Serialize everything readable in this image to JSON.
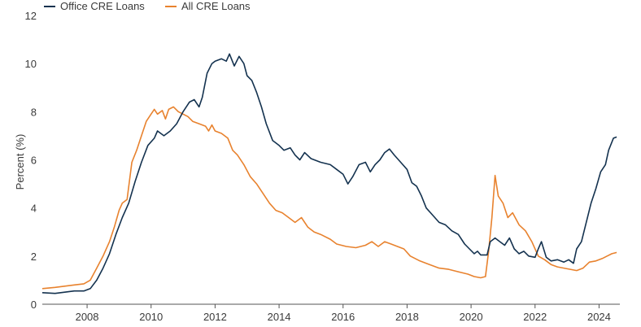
{
  "chart_data": {
    "type": "line",
    "title": "",
    "xlabel": "",
    "ylabel": "Percent (%)",
    "xlim": [
      2006.6,
      2024.65
    ],
    "ylim": [
      0,
      12
    ],
    "yticks": [
      0,
      2,
      4,
      6,
      8,
      10,
      12
    ],
    "xticks": [
      2008,
      2010,
      2012,
      2014,
      2016,
      2018,
      2020,
      2022,
      2024
    ],
    "grid": false,
    "legend": {
      "position": "top-left"
    },
    "series": [
      {
        "name": "Office CRE Loans",
        "color": "#14324f",
        "points": [
          [
            2006.6,
            0.48
          ],
          [
            2007.0,
            0.45
          ],
          [
            2007.3,
            0.5
          ],
          [
            2007.6,
            0.55
          ],
          [
            2007.9,
            0.55
          ],
          [
            2008.1,
            0.65
          ],
          [
            2008.3,
            1.0
          ],
          [
            2008.5,
            1.5
          ],
          [
            2008.7,
            2.1
          ],
          [
            2008.9,
            2.9
          ],
          [
            2009.1,
            3.6
          ],
          [
            2009.3,
            4.2
          ],
          [
            2009.5,
            5.1
          ],
          [
            2009.7,
            5.9
          ],
          [
            2009.9,
            6.6
          ],
          [
            2010.1,
            6.9
          ],
          [
            2010.2,
            7.2
          ],
          [
            2010.4,
            7.0
          ],
          [
            2010.6,
            7.2
          ],
          [
            2010.8,
            7.5
          ],
          [
            2011.0,
            8.0
          ],
          [
            2011.2,
            8.4
          ],
          [
            2011.35,
            8.5
          ],
          [
            2011.5,
            8.2
          ],
          [
            2011.6,
            8.6
          ],
          [
            2011.75,
            9.6
          ],
          [
            2011.9,
            10.0
          ],
          [
            2012.0,
            10.1
          ],
          [
            2012.2,
            10.2
          ],
          [
            2012.35,
            10.1
          ],
          [
            2012.45,
            10.4
          ],
          [
            2012.6,
            9.9
          ],
          [
            2012.75,
            10.3
          ],
          [
            2012.9,
            10.0
          ],
          [
            2013.0,
            9.5
          ],
          [
            2013.15,
            9.3
          ],
          [
            2013.3,
            8.8
          ],
          [
            2013.45,
            8.2
          ],
          [
            2013.6,
            7.5
          ],
          [
            2013.8,
            6.8
          ],
          [
            2014.0,
            6.6
          ],
          [
            2014.15,
            6.4
          ],
          [
            2014.35,
            6.5
          ],
          [
            2014.5,
            6.2
          ],
          [
            2014.65,
            6.0
          ],
          [
            2014.8,
            6.3
          ],
          [
            2015.0,
            6.05
          ],
          [
            2015.3,
            5.9
          ],
          [
            2015.6,
            5.8
          ],
          [
            2015.8,
            5.6
          ],
          [
            2016.0,
            5.4
          ],
          [
            2016.15,
            5.0
          ],
          [
            2016.3,
            5.3
          ],
          [
            2016.5,
            5.8
          ],
          [
            2016.7,
            5.9
          ],
          [
            2016.85,
            5.5
          ],
          [
            2017.0,
            5.8
          ],
          [
            2017.15,
            6.0
          ],
          [
            2017.3,
            6.3
          ],
          [
            2017.45,
            6.45
          ],
          [
            2017.6,
            6.2
          ],
          [
            2017.8,
            5.9
          ],
          [
            2018.0,
            5.6
          ],
          [
            2018.15,
            5.05
          ],
          [
            2018.3,
            4.9
          ],
          [
            2018.45,
            4.5
          ],
          [
            2018.6,
            4.0
          ],
          [
            2018.8,
            3.7
          ],
          [
            2019.0,
            3.4
          ],
          [
            2019.2,
            3.3
          ],
          [
            2019.4,
            3.05
          ],
          [
            2019.6,
            2.9
          ],
          [
            2019.8,
            2.5
          ],
          [
            2019.95,
            2.3
          ],
          [
            2020.1,
            2.1
          ],
          [
            2020.2,
            2.2
          ],
          [
            2020.3,
            2.05
          ],
          [
            2020.5,
            2.05
          ],
          [
            2020.6,
            2.6
          ],
          [
            2020.75,
            2.75
          ],
          [
            2020.9,
            2.6
          ],
          [
            2021.05,
            2.45
          ],
          [
            2021.2,
            2.75
          ],
          [
            2021.35,
            2.3
          ],
          [
            2021.5,
            2.1
          ],
          [
            2021.65,
            2.2
          ],
          [
            2021.8,
            2.0
          ],
          [
            2022.0,
            1.95
          ],
          [
            2022.1,
            2.3
          ],
          [
            2022.2,
            2.6
          ],
          [
            2022.35,
            1.95
          ],
          [
            2022.5,
            1.8
          ],
          [
            2022.7,
            1.85
          ],
          [
            2022.9,
            1.75
          ],
          [
            2023.05,
            1.85
          ],
          [
            2023.2,
            1.7
          ],
          [
            2023.3,
            2.3
          ],
          [
            2023.45,
            2.6
          ],
          [
            2023.6,
            3.4
          ],
          [
            2023.75,
            4.2
          ],
          [
            2023.9,
            4.8
          ],
          [
            2024.05,
            5.5
          ],
          [
            2024.2,
            5.8
          ],
          [
            2024.3,
            6.4
          ],
          [
            2024.45,
            6.9
          ],
          [
            2024.55,
            6.95
          ]
        ]
      },
      {
        "name": "All CRE Loans",
        "color": "#e8822e",
        "points": [
          [
            2006.6,
            0.65
          ],
          [
            2007.0,
            0.7
          ],
          [
            2007.3,
            0.75
          ],
          [
            2007.6,
            0.8
          ],
          [
            2007.9,
            0.85
          ],
          [
            2008.1,
            1.0
          ],
          [
            2008.3,
            1.5
          ],
          [
            2008.5,
            2.0
          ],
          [
            2008.7,
            2.6
          ],
          [
            2008.85,
            3.2
          ],
          [
            2009.0,
            3.9
          ],
          [
            2009.1,
            4.2
          ],
          [
            2009.25,
            4.35
          ],
          [
            2009.4,
            5.9
          ],
          [
            2009.55,
            6.4
          ],
          [
            2009.7,
            7.0
          ],
          [
            2009.85,
            7.6
          ],
          [
            2010.0,
            7.9
          ],
          [
            2010.1,
            8.1
          ],
          [
            2010.2,
            7.9
          ],
          [
            2010.35,
            8.05
          ],
          [
            2010.45,
            7.7
          ],
          [
            2010.55,
            8.1
          ],
          [
            2010.7,
            8.2
          ],
          [
            2010.85,
            8.0
          ],
          [
            2011.0,
            7.9
          ],
          [
            2011.15,
            7.8
          ],
          [
            2011.3,
            7.6
          ],
          [
            2011.5,
            7.5
          ],
          [
            2011.7,
            7.4
          ],
          [
            2011.8,
            7.2
          ],
          [
            2011.9,
            7.45
          ],
          [
            2012.0,
            7.2
          ],
          [
            2012.2,
            7.1
          ],
          [
            2012.4,
            6.9
          ],
          [
            2012.55,
            6.4
          ],
          [
            2012.7,
            6.2
          ],
          [
            2012.9,
            5.8
          ],
          [
            2013.1,
            5.3
          ],
          [
            2013.3,
            5.0
          ],
          [
            2013.5,
            4.6
          ],
          [
            2013.7,
            4.2
          ],
          [
            2013.9,
            3.9
          ],
          [
            2014.1,
            3.8
          ],
          [
            2014.3,
            3.6
          ],
          [
            2014.5,
            3.4
          ],
          [
            2014.7,
            3.6
          ],
          [
            2014.9,
            3.2
          ],
          [
            2015.1,
            3.0
          ],
          [
            2015.3,
            2.9
          ],
          [
            2015.6,
            2.7
          ],
          [
            2015.8,
            2.5
          ],
          [
            2016.1,
            2.4
          ],
          [
            2016.4,
            2.35
          ],
          [
            2016.7,
            2.45
          ],
          [
            2016.9,
            2.6
          ],
          [
            2017.1,
            2.4
          ],
          [
            2017.3,
            2.6
          ],
          [
            2017.5,
            2.5
          ],
          [
            2017.7,
            2.4
          ],
          [
            2017.9,
            2.3
          ],
          [
            2018.1,
            2.0
          ],
          [
            2018.4,
            1.8
          ],
          [
            2018.7,
            1.65
          ],
          [
            2019.0,
            1.5
          ],
          [
            2019.3,
            1.45
          ],
          [
            2019.6,
            1.35
          ],
          [
            2019.9,
            1.25
          ],
          [
            2020.1,
            1.15
          ],
          [
            2020.3,
            1.1
          ],
          [
            2020.45,
            1.15
          ],
          [
            2020.55,
            2.2
          ],
          [
            2020.65,
            3.6
          ],
          [
            2020.75,
            5.35
          ],
          [
            2020.85,
            4.5
          ],
          [
            2021.0,
            4.2
          ],
          [
            2021.15,
            3.6
          ],
          [
            2021.3,
            3.8
          ],
          [
            2021.5,
            3.3
          ],
          [
            2021.7,
            3.05
          ],
          [
            2021.9,
            2.6
          ],
          [
            2022.1,
            2.0
          ],
          [
            2022.3,
            1.85
          ],
          [
            2022.5,
            1.65
          ],
          [
            2022.7,
            1.55
          ],
          [
            2022.9,
            1.5
          ],
          [
            2023.1,
            1.45
          ],
          [
            2023.3,
            1.4
          ],
          [
            2023.5,
            1.5
          ],
          [
            2023.7,
            1.75
          ],
          [
            2023.9,
            1.8
          ],
          [
            2024.1,
            1.9
          ],
          [
            2024.25,
            2.0
          ],
          [
            2024.4,
            2.1
          ],
          [
            2024.55,
            2.15
          ]
        ]
      }
    ]
  }
}
